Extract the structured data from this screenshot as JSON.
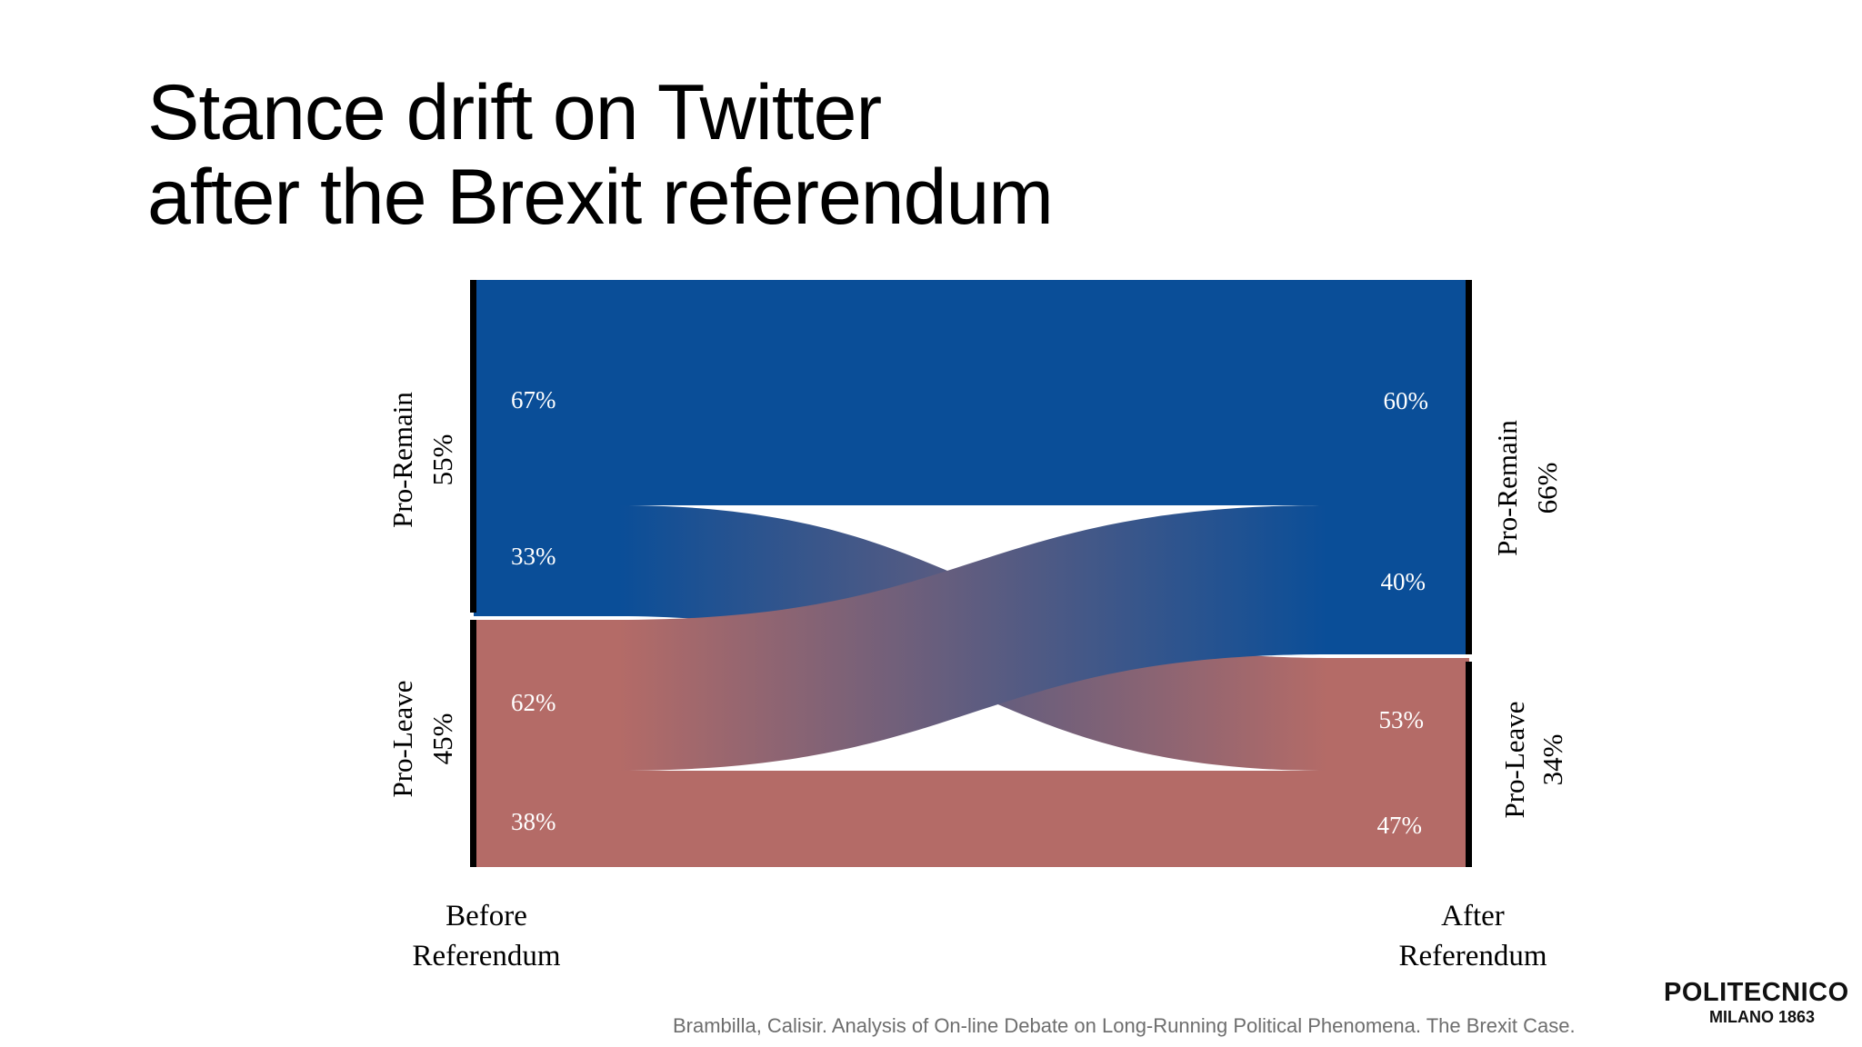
{
  "slide": {
    "title_line1": "Stance drift on Twitter",
    "title_line2": "after the Brexit referendum",
    "citation": "Brambilla, Calisir. Analysis of On-line Debate  on Long-Running Political Phenomena. The Brexit Case.",
    "logo_name": "POLITECNICO",
    "logo_city": "MILANO 1863"
  },
  "colors": {
    "remain": "#0a4e98",
    "leave": "#b46b67",
    "node_bar": "#000000",
    "label_on_flow": "#ffffff",
    "axis_text": "#000000"
  },
  "diagram": {
    "type": "sankey",
    "columns": [
      {
        "label_line1": "Before",
        "label_line2": "Referendum",
        "nodes": [
          {
            "name": "Pro-Remain",
            "share": "55%"
          },
          {
            "name": "Pro-Leave",
            "share": "45%"
          }
        ]
      },
      {
        "label_line1": "After",
        "label_line2": "Referendum",
        "nodes": [
          {
            "name": "Pro-Remain",
            "share": "66%"
          },
          {
            "name": "Pro-Leave",
            "share": "34%"
          }
        ]
      }
    ],
    "flows": [
      {
        "id": "remain_to_remain",
        "source": "Pro-Remain",
        "target": "Pro-Remain",
        "source_pct": "67%",
        "target_pct": "60%"
      },
      {
        "id": "remain_to_leave",
        "source": "Pro-Remain",
        "target": "Pro-Leave",
        "source_pct": "33%",
        "target_pct": "53%"
      },
      {
        "id": "leave_to_remain",
        "source": "Pro-Leave",
        "target": "Pro-Remain",
        "source_pct": "62%",
        "target_pct": "40%"
      },
      {
        "id": "leave_to_leave",
        "source": "Pro-Leave",
        "target": "Pro-Leave",
        "source_pct": "38%",
        "target_pct": "47%"
      }
    ]
  }
}
